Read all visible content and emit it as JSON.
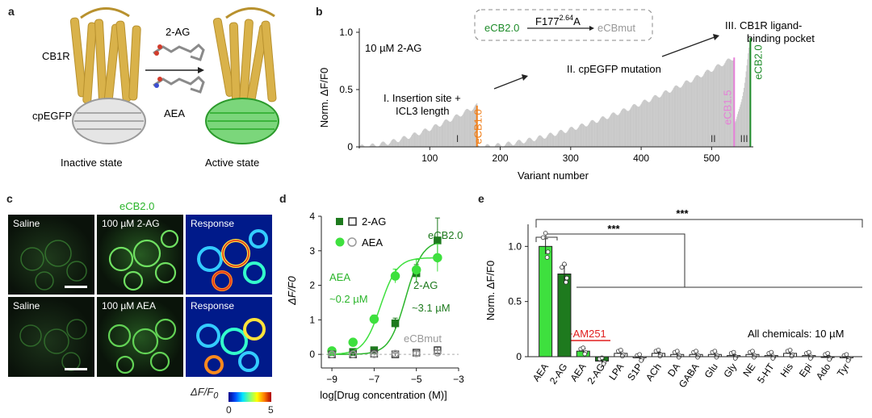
{
  "panels": {
    "a": {
      "label": "a",
      "receptor": "CB1R",
      "sensor": "cpEGFP",
      "ligand1": "2-AG",
      "ligand2": "AEA",
      "inactive": "Inactive state",
      "active": "Active state"
    },
    "b": {
      "label": "b",
      "mutation_from": "eCB2.0",
      "mutation": "F177",
      "mutation_sup": "2.64",
      "mutation_suffix": "A",
      "mutation_to": "eCBmut",
      "condition": "10 µM 2-AG",
      "step1": "I. Insertion site +",
      "step1b": "ICL3 length",
      "step2": "II. cpEGFP mutation",
      "step3": "III. CB1R ligand-",
      "step3b": "binding pocket",
      "marker1": "eCB1.0",
      "marker2": "eCB1.5",
      "marker3": "eCB2.0",
      "roman1": "I",
      "roman2": "II",
      "roman3": "III",
      "colors": {
        "orange": "#f07f1a",
        "pink": "#e67fd8",
        "green": "#1e8c2a",
        "grey": "#c8c8c8"
      }
    },
    "c": {
      "label": "c",
      "title": "eCB2.0",
      "tiles": [
        "Saline",
        "100 µM 2-AG",
        "Response",
        "Saline",
        "100 µM AEA",
        "Response"
      ],
      "colorbar_label": "ΔF/F",
      "colorbar_sub": "0",
      "colorbar_min": "0",
      "colorbar_max": "5"
    },
    "d": {
      "label": "d",
      "legend1": "2-AG",
      "legend2": "AEA",
      "annot_aea": "AEA",
      "annot_aea_ec": "~0.2 µM",
      "annot_2ag": "2-AG",
      "annot_2ag_ec": "~3.1 µM",
      "annot_ecb": "eCB2.0",
      "annot_mut": "eCBmut"
    },
    "e": {
      "label": "e",
      "sig1": "***",
      "sig2": "***",
      "antagonist": "+AM251",
      "note": "All chemicals: 10 µM"
    }
  },
  "chart_data": [
    {
      "id": "b",
      "type": "bar",
      "title": "",
      "xlabel": "Variant number",
      "ylabel": "Norm. ΔF/F0",
      "xlim": [
        0,
        550
      ],
      "ylim": [
        0,
        1.0
      ],
      "xticks": [
        100,
        200,
        300,
        400,
        500
      ],
      "yticks": [
        0,
        0.5,
        1.0
      ],
      "ytick_labels": [
        "0",
        "0.5",
        "1.0"
      ],
      "segments": [
        {
          "name": "I",
          "x_start": 1,
          "x_end": 167,
          "y_start": 0.0,
          "y_end": 0.36
        },
        {
          "name": "II",
          "x_start": 168,
          "x_end": 532,
          "y_start": 0.0,
          "y_end": 0.78
        },
        {
          "name": "III",
          "x_start": 533,
          "x_end": 555,
          "y_start": 0.22,
          "y_end": 0.95
        }
      ],
      "markers": [
        {
          "name": "eCB1.0",
          "x": 167,
          "y": 0.36
        },
        {
          "name": "eCB1.5",
          "x": 532,
          "y": 0.78
        },
        {
          "name": "eCB2.0",
          "x": 555,
          "y": 0.95
        }
      ]
    },
    {
      "id": "d",
      "type": "scatter",
      "xlabel": "log[Drug concentration (M)]",
      "ylabel": "ΔF/F0",
      "xlim": [
        -9.5,
        -3
      ],
      "ylim": [
        -0.3,
        4
      ],
      "xticks": [
        -9,
        -7,
        -5,
        -3
      ],
      "yticks": [
        0,
        1,
        2,
        3,
        4
      ],
      "series": [
        {
          "name": "eCB2.0 2-AG",
          "marker": "square-filled",
          "x": [
            -9,
            -8,
            -7,
            -6,
            -5,
            -4
          ],
          "y": [
            0.07,
            0.07,
            0.12,
            0.9,
            2.35,
            3.3
          ],
          "err": [
            0.05,
            0.05,
            0.06,
            0.15,
            0.25,
            0.65
          ],
          "fit": {
            "top": 3.3,
            "logEC50": -5.5,
            "hill": 1.1
          }
        },
        {
          "name": "eCB2.0 AEA",
          "marker": "circle-filled",
          "x": [
            -9,
            -8,
            -7,
            -6,
            -5,
            -4
          ],
          "y": [
            0.1,
            0.35,
            1.02,
            2.27,
            2.45,
            2.8
          ],
          "err": [
            0.05,
            0.07,
            0.12,
            0.2,
            0.3,
            0.4
          ],
          "fit": {
            "top": 2.8,
            "logEC50": -6.7,
            "hill": 1.1
          }
        },
        {
          "name": "eCBmut 2-AG",
          "marker": "square-open",
          "x": [
            -9,
            -8,
            -7,
            -6,
            -5,
            -4
          ],
          "y": [
            0.0,
            0.0,
            0.02,
            0.0,
            0.05,
            0.12
          ],
          "err": [
            0.03,
            0.03,
            0.03,
            0.04,
            0.06,
            0.1
          ]
        },
        {
          "name": "eCBmut AEA",
          "marker": "circle-open",
          "x": [
            -9,
            -8,
            -7,
            -6,
            -5,
            -4
          ],
          "y": [
            0.0,
            0.0,
            0.0,
            0.02,
            0.03,
            0.05
          ],
          "err": [
            0.03,
            0.03,
            0.03,
            0.03,
            0.05,
            0.06
          ]
        }
      ]
    },
    {
      "id": "e",
      "type": "bar",
      "ylabel": "Norm. ΔF/F0",
      "ylim": [
        -0.05,
        1.2
      ],
      "yticks": [
        0,
        0.5,
        1.0
      ],
      "ytick_labels": [
        "0",
        "0.5",
        "1.0"
      ],
      "categories": [
        "AEA",
        "2-AG",
        "AEA",
        "2-AG",
        "LPA",
        "S1P",
        "ACh",
        "DA",
        "GABA",
        "Glu",
        "Gly",
        "NE",
        "5-HT",
        "His",
        "Epi",
        "Ado",
        "Tyr"
      ],
      "values": [
        1.0,
        0.75,
        0.05,
        -0.04,
        0.03,
        -0.01,
        0.03,
        0.02,
        0.02,
        0.02,
        0.01,
        0.02,
        0.01,
        0.03,
        0.01,
        0.0,
        -0.01
      ],
      "errors": [
        0.07,
        0.08,
        0.02,
        0.02,
        0.02,
        0.01,
        0.01,
        0.02,
        0.02,
        0.02,
        0.01,
        0.02,
        0.02,
        0.03,
        0.02,
        0.01,
        0.01
      ],
      "fills": [
        "#3ee03e",
        "#1e7a1e",
        "#3ee03e",
        "#1e7a1e",
        "#ffffff",
        "#ffffff",
        "#ffffff",
        "#ffffff",
        "#ffffff",
        "#ffffff",
        "#ffffff",
        "#ffffff",
        "#ffffff",
        "#ffffff",
        "#ffffff",
        "#ffffff",
        "#ffffff"
      ]
    }
  ]
}
